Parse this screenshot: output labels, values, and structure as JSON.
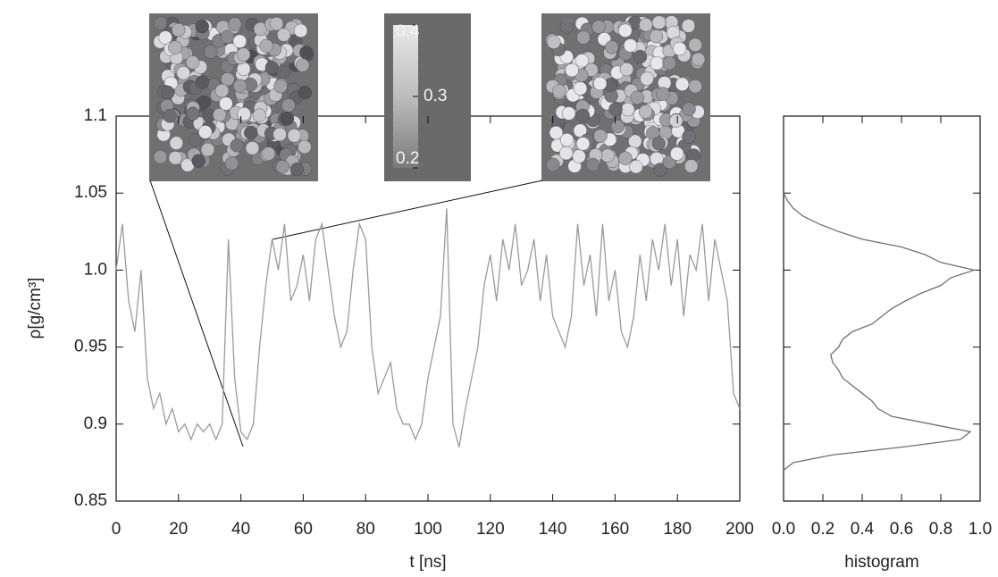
{
  "chart_data": [
    {
      "type": "line",
      "xlabel": "t [ns]",
      "ylabel": "ρ[g/cm³]",
      "color": "#9a9a9a",
      "x": [
        0,
        2,
        4,
        6,
        8,
        10,
        12,
        14,
        16,
        18,
        20,
        22,
        24,
        26,
        28,
        30,
        32,
        34,
        36,
        38,
        40,
        42,
        44,
        46,
        48,
        50,
        52,
        54,
        56,
        58,
        60,
        62,
        64,
        66,
        68,
        70,
        72,
        74,
        76,
        78,
        80,
        82,
        84,
        86,
        88,
        90,
        92,
        94,
        96,
        98,
        100,
        102,
        104,
        106,
        108,
        110,
        112,
        114,
        116,
        118,
        120,
        122,
        124,
        126,
        128,
        130,
        132,
        134,
        136,
        138,
        140,
        142,
        144,
        146,
        148,
        150,
        152,
        154,
        156,
        158,
        160,
        162,
        164,
        166,
        168,
        170,
        172,
        174,
        176,
        178,
        180,
        182,
        184,
        186,
        188,
        190,
        192,
        194,
        196,
        198,
        200
      ],
      "values": [
        1.0,
        1.03,
        0.98,
        0.96,
        1.0,
        0.93,
        0.91,
        0.92,
        0.9,
        0.91,
        0.895,
        0.9,
        0.89,
        0.9,
        0.895,
        0.9,
        0.89,
        0.9,
        1.02,
        0.93,
        0.895,
        0.89,
        0.9,
        0.95,
        0.99,
        1.02,
        1.0,
        1.03,
        0.98,
        0.99,
        1.01,
        0.98,
        1.02,
        1.03,
        1.0,
        0.97,
        0.95,
        0.96,
        1.0,
        1.03,
        1.02,
        0.95,
        0.92,
        0.93,
        0.94,
        0.91,
        0.9,
        0.9,
        0.89,
        0.9,
        0.93,
        0.95,
        0.97,
        1.04,
        0.9,
        0.885,
        0.91,
        0.93,
        0.95,
        0.99,
        1.01,
        0.98,
        1.02,
        1.0,
        1.03,
        0.99,
        1.0,
        1.02,
        0.98,
        1.01,
        0.97,
        0.96,
        0.95,
        0.97,
        1.03,
        0.99,
        1.01,
        0.97,
        1.03,
        0.98,
        1.0,
        0.96,
        0.95,
        0.97,
        1.01,
        0.98,
        1.02,
        1.0,
        1.03,
        0.99,
        1.02,
        0.97,
        1.01,
        1.0,
        1.03,
        0.98,
        1.02,
        1.0,
        0.98,
        0.92,
        0.91
      ],
      "xlim": [
        0,
        200
      ],
      "xticks": [
        0,
        20,
        40,
        60,
        80,
        100,
        120,
        140,
        160,
        180,
        200
      ],
      "ylim": [
        0.85,
        1.1
      ],
      "yticks": [
        0.85,
        {
          "value": 0.9,
          "label": "0.9"
        },
        0.95,
        {
          "value": 1,
          "label": "1.0"
        },
        1.05,
        1.1
      ],
      "colorbar": {
        "lim": [
          0.2,
          0.4
        ],
        "ticks": [
          0.2,
          0.3,
          0.4
        ]
      }
    },
    {
      "type": "profile",
      "orientation": "horizontal",
      "xlabel": "histogram",
      "color": "#707070",
      "y": [
        0.87,
        0.875,
        0.88,
        0.885,
        0.89,
        0.895,
        0.9,
        0.905,
        0.91,
        0.915,
        0.92,
        0.925,
        0.93,
        0.935,
        0.94,
        0.945,
        0.95,
        0.955,
        0.96,
        0.965,
        0.97,
        0.975,
        0.98,
        0.985,
        0.99,
        0.995,
        1.0,
        1.005,
        1.01,
        1.015,
        1.02,
        1.025,
        1.03,
        1.035,
        1.04,
        1.045,
        1.05
      ],
      "values": [
        0,
        0.05,
        0.25,
        0.6,
        0.9,
        0.95,
        0.75,
        0.55,
        0.48,
        0.45,
        0.4,
        0.35,
        0.3,
        0.28,
        0.25,
        0.24,
        0.28,
        0.3,
        0.35,
        0.45,
        0.5,
        0.55,
        0.62,
        0.7,
        0.8,
        0.85,
        0.97,
        0.8,
        0.72,
        0.6,
        0.4,
        0.28,
        0.18,
        0.1,
        0.05,
        0.02,
        0
      ],
      "xlim": [
        0,
        1
      ],
      "xticks": [
        {
          "value": 0,
          "label": "0.0"
        },
        0.2,
        0.4,
        0.6,
        0.8,
        {
          "value": 1,
          "label": "1.0"
        }
      ],
      "ylim": [
        0.85,
        1.1
      ],
      "yticks": [
        0.85,
        0.9,
        0.95,
        1,
        1.05,
        1.1
      ]
    }
  ]
}
